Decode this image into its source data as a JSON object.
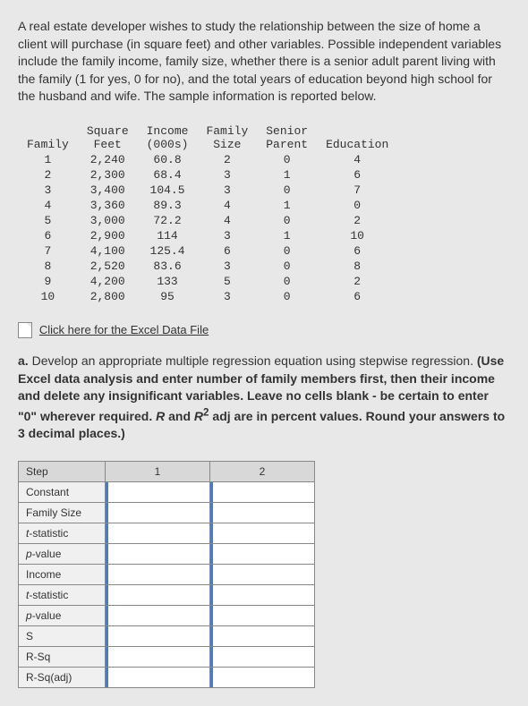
{
  "problem": "A real estate developer wishes to study the relationship between the size of home a client will purchase (in square feet) and other variables. Possible independent variables include the family income, family size, whether there is a senior adult parent living with the family (1 for yes, 0 for no), and the total years of education beyond high school for the husband and wife. The sample information is reported below.",
  "table": {
    "headers": [
      "Family",
      "Square\nFeet",
      "Income\n(000s)",
      "Family\nSize",
      "Senior\nParent",
      "Education"
    ],
    "rows": [
      [
        "1",
        "2,240",
        "60.8",
        "2",
        "0",
        "4"
      ],
      [
        "2",
        "2,300",
        "68.4",
        "3",
        "1",
        "6"
      ],
      [
        "3",
        "3,400",
        "104.5",
        "3",
        "0",
        "7"
      ],
      [
        "4",
        "3,360",
        "89.3",
        "4",
        "1",
        "0"
      ],
      [
        "5",
        "3,000",
        "72.2",
        "4",
        "0",
        "2"
      ],
      [
        "6",
        "2,900",
        "114",
        "3",
        "1",
        "10"
      ],
      [
        "7",
        "4,100",
        "125.4",
        "6",
        "0",
        "6"
      ],
      [
        "8",
        "2,520",
        "83.6",
        "3",
        "0",
        "8"
      ],
      [
        "9",
        "4,200",
        "133",
        "5",
        "0",
        "2"
      ],
      [
        "10",
        "2,800",
        "95",
        "3",
        "0",
        "6"
      ]
    ]
  },
  "excelLink": "Click here for the Excel Data File",
  "questionLabel": "a.",
  "questionMain": "Develop an appropriate multiple regression equation using stepwise regression.",
  "questionInstr1": "(Use Excel data analysis and enter number of family members first, then their income and delete any insignificant variables. Leave no cells blank - be certain to enter \"0\" wherever required. ",
  "questionInstr2": " and ",
  "questionInstr3": " adj are in percent values. Round your answers to 3 decimal places.)",
  "rSym": "R",
  "r2Sym": "R",
  "answerHeaders": {
    "step": "Step",
    "c1": "1",
    "c2": "2"
  },
  "answerRows": [
    "Constant",
    "Family Size",
    "t-statistic",
    "p-value",
    "Income",
    "t-statistic",
    "p-value",
    "S",
    "R-Sq",
    "R-Sq(adj)"
  ]
}
